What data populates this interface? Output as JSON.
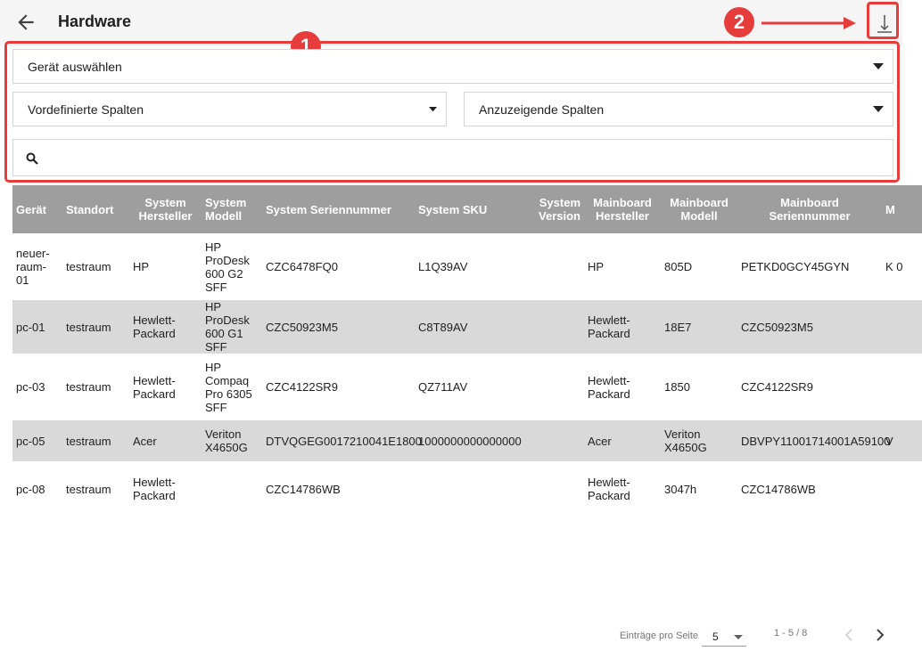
{
  "header": {
    "title": "Hardware",
    "back_icon": "arrow-left-icon",
    "download_icon": "download-icon"
  },
  "annotations": {
    "badge1": "1",
    "badge2": "2",
    "color": "#e63c3c"
  },
  "filters": {
    "device_select": "Gerät auswählen",
    "predefined_columns": "Vordefinierte Spalten",
    "columns_to_show": "Anzuzeigende Spalten",
    "search_placeholder": ""
  },
  "table": {
    "columns": [
      "Gerät",
      "Standort",
      "System Hersteller",
      "System Modell",
      "System Seriennummer",
      "System SKU",
      "System Version",
      "Mainboard Hersteller",
      "Mainboard Modell",
      "Mainboard Seriennummer",
      "M"
    ],
    "rows": [
      [
        "neuer-raum-01",
        "testraum",
        "HP",
        "HP ProDesk 600 G2 SFF",
        "CZC6478FQ0",
        "L1Q39AV",
        "",
        "HP",
        "805D",
        "PETKD0GCY45GYN",
        "K 0"
      ],
      [
        "pc-01",
        "testraum",
        "Hewlett-Packard",
        "HP ProDesk 600 G1 SFF",
        "CZC50923M5",
        "C8T89AV",
        "",
        "Hewlett-Packard",
        "18E7",
        "CZC50923M5",
        ""
      ],
      [
        "pc-03",
        "testraum",
        "Hewlett-Packard",
        "HP Compaq Pro 6305 SFF",
        "CZC4122SR9",
        "QZ711AV",
        "",
        "Hewlett-Packard",
        "1850",
        "CZC4122SR9",
        ""
      ],
      [
        "pc-05",
        "testraum",
        "Acer",
        "Veriton X4650G",
        "DTVQGEG0017210041E1800",
        "1000000000000000",
        "",
        "Acer",
        "Veriton X4650G",
        "DBVPY11001714001A59100",
        "V"
      ],
      [
        "pc-08",
        "testraum",
        "Hewlett-Packard",
        "",
        "CZC14786WB",
        "",
        "",
        "Hewlett-Packard",
        "3047h",
        "CZC14786WB",
        ""
      ]
    ]
  },
  "pagination": {
    "label": "Einträge pro Seite",
    "per_page": "5",
    "range": "1 - 5 / 8",
    "prev_icon": "chevron-left-icon",
    "next_icon": "chevron-right-icon"
  }
}
